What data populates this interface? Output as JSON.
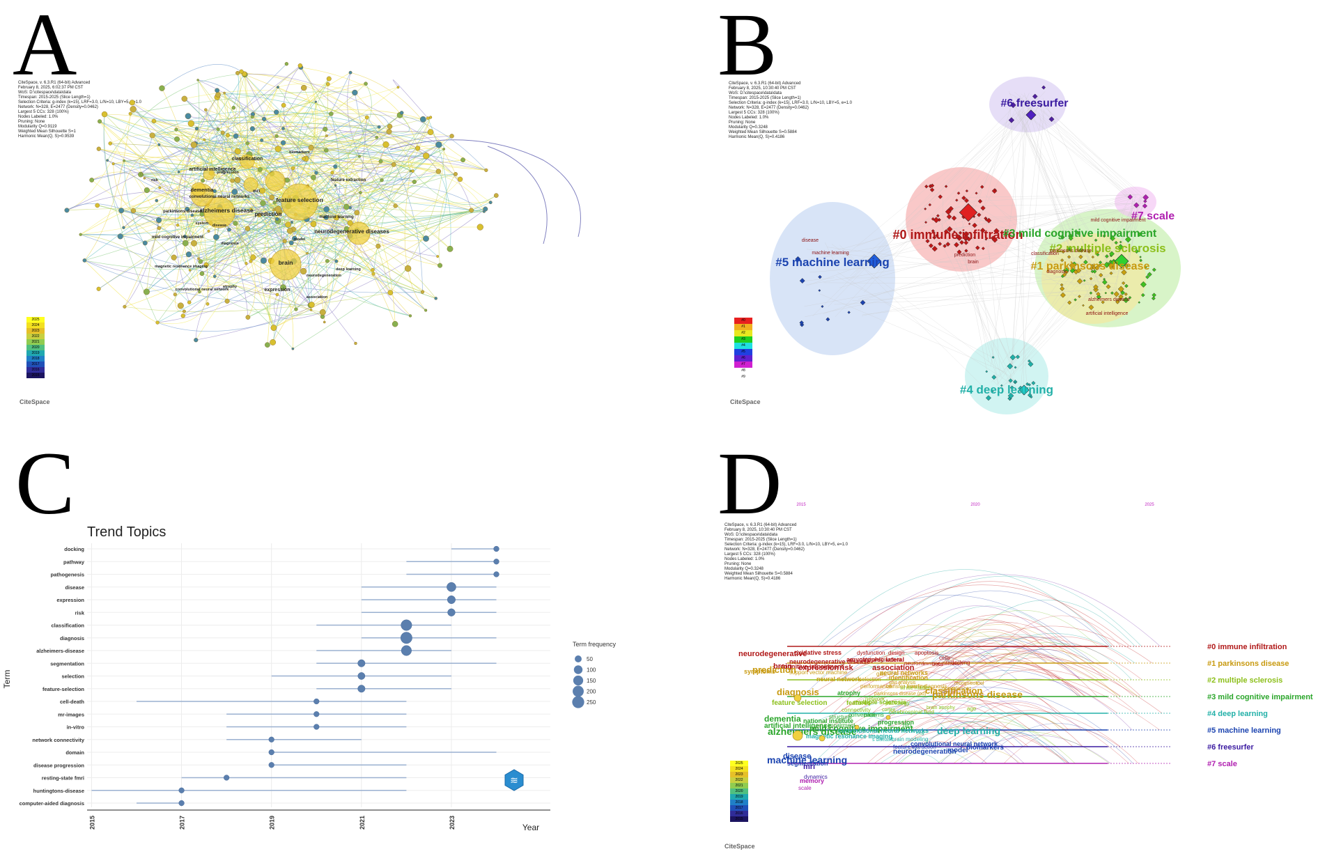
{
  "panels": {
    "a": {
      "letter": "A",
      "meta": [
        "CiteSpace, v. 6.3.R1 (64-bit) Advanced",
        "February 8, 2025, 6:02:37 PM CST",
        "WoS: D:\\citespace\\data\\data",
        "Timespan: 2015-2025 (Slice Length=1)",
        "Selection Criteria: g-index (k=15), LRF=3.0, L/N=10, LBY=5, e=1.0",
        "Network: N=328, E=2477 (Density=0.0462)",
        "Largest 5 CCs: 328 (100%)",
        "Nodes Labeled: 1.0%",
        "Pruning: None",
        "Modularity Q=0.9119",
        "Weighted Mean Silhouette S=1",
        "Harmonic Mean(Q, S)=0.9539"
      ],
      "keywords": [
        "classification",
        "biomarkers",
        "artificial intelligence",
        "progression",
        "risk",
        "dementia",
        "mri",
        "feature extraction",
        "convolutional neural networks",
        "feature selection",
        "alzheimers disease",
        "parkinsons disease",
        "prediction",
        "machine learning",
        "system",
        "neurodegenerative diseases",
        "mild cognitive impairment",
        "diagnosis",
        "brain",
        "magnetic resonance imaging",
        "deep learning",
        "neurodegeneration",
        "convolutional neural network",
        "atrophy",
        "expression",
        "association",
        "disease",
        "model"
      ],
      "legend_years": [
        "2025",
        "2024",
        "2023",
        "2022",
        "2021",
        "2020",
        "2019",
        "2018",
        "2017",
        "2016",
        "2015"
      ],
      "logo": "CiteSpace"
    },
    "b": {
      "letter": "B",
      "meta": [
        "CiteSpace, v. 6.3.R1 (64-bit) Advanced",
        "February 8, 2025, 10:30:40 PM CST",
        "WoS: D:\\citespace\\data\\data",
        "Timespan: 2015-2025 (Slice Length=1)",
        "Selection Criteria: g-index (k=15), LRF=3.0, L/N=10, LBY=5, e=1.0",
        "Network: N=328, E=2477 (Density=0.0462)",
        "Largest 5 CCs: 328 (100%)",
        "Nodes Labeled: 1.0%",
        "Pruning: None",
        "Modularity Q=0.3248",
        "Weighted Mean Silhouette S=0.5884",
        "Harmonic Mean(Q, S)=0.4186"
      ],
      "clusters": [
        {
          "label": "#0 immune infiltration",
          "color": "#b01818"
        },
        {
          "label": "#1 parkinsons disease",
          "color": "#c89a10"
        },
        {
          "label": "#2 multiple sclerosis",
          "color": "#8cbf1a"
        },
        {
          "label": "#3 mild cognitive impairment",
          "color": "#2aa52a"
        },
        {
          "label": "#4 deep learning",
          "color": "#22b0a8"
        },
        {
          "label": "#5 machine learning",
          "color": "#1c44b0"
        },
        {
          "label": "#6 freesurfer",
          "color": "#3a1aa0"
        },
        {
          "label": "#7 scale",
          "color": "#b020b0"
        }
      ],
      "small_labels": [
        "disease",
        "machine learning",
        "prediction",
        "brain",
        "mild cognitive impairment",
        "classification",
        "parkinsons disease",
        "diagnosis",
        "alzheimers disease",
        "artificial intelligence"
      ],
      "legend": [
        "#0",
        "#1",
        "#2",
        "#3",
        "#4",
        "#5",
        "#6",
        "#7",
        "#8",
        "#9"
      ],
      "logo": "CiteSpace"
    },
    "c": {
      "letter": "C",
      "title": "Trend Topics",
      "ylabel": "Term",
      "xlabel": "Year",
      "legend_title": "Term frequency",
      "legend_sizes": [
        50,
        100,
        150,
        200,
        250
      ],
      "logo_text": "≋"
    },
    "d": {
      "letter": "D",
      "meta": [
        "CiteSpace, v. 6.3.R1 (64-bit) Advanced",
        "February 8, 2025, 10:30:40 PM CST",
        "WoS: D:\\citespace\\data\\data",
        "Timespan: 2015-2025 (Slice Length=1)",
        "Selection Criteria: g-index (k=15), LRF=3.0, L/N=10, LBY=5, e=1.0",
        "Network: N=328, E=2477 (Density=0.0462)",
        "Largest 5 CCs: 328 (100%)",
        "Nodes Labeled: 1.0%",
        "Pruning: None",
        "Modularity Q=0.3248",
        "Weighted Mean Silhouette S=0.5884",
        "Harmonic Mean(Q, S)=0.4186"
      ],
      "timeline_years": [
        "2015",
        "2020",
        "2025"
      ],
      "clusters": [
        {
          "label": "#0 immune infiltration",
          "color": "#b01818"
        },
        {
          "label": "#1 parkinsons disease",
          "color": "#c89a10"
        },
        {
          "label": "#2 multiple sclerosis",
          "color": "#8cbf1a"
        },
        {
          "label": "#3 mild cognitive impairment",
          "color": "#2aa52a"
        },
        {
          "label": "#4 deep learning",
          "color": "#22b0a8"
        },
        {
          "label": "#5 machine learning",
          "color": "#1c44b0"
        },
        {
          "label": "#6 freesurfer",
          "color": "#3a1aa0"
        },
        {
          "label": "#7 scale",
          "color": "#b020b0"
        }
      ],
      "words": [
        {
          "t": "neurodegenerative",
          "c": "#b01818",
          "s": 11
        },
        {
          "t": "oxidative stress",
          "c": "#b01818",
          "s": 9
        },
        {
          "t": "dysfunction",
          "c": "#b01818",
          "s": 8
        },
        {
          "t": "design",
          "c": "#b01818",
          "s": 8
        },
        {
          "t": "apoptosis",
          "c": "#b01818",
          "s": 8
        },
        {
          "t": "cells",
          "c": "#b01818",
          "s": 8
        },
        {
          "t": "docking",
          "c": "#b01818",
          "s": 8
        },
        {
          "t": "immune infiltration",
          "c": "#b01818",
          "s": 7
        },
        {
          "t": "neurons",
          "c": "#b01818",
          "s": 8
        },
        {
          "t": "beta",
          "c": "#b01818",
          "s": 8
        },
        {
          "t": "amyotrophic lateral",
          "c": "#b01818",
          "s": 9
        },
        {
          "t": "alpha-synuclein",
          "c": "#b01818",
          "s": 8
        },
        {
          "t": "neurodegenerative disease",
          "c": "#b01818",
          "s": 9
        },
        {
          "t": "cognitive impairment",
          "c": "#b01818",
          "s": 9
        },
        {
          "t": "brain",
          "c": "#b01818",
          "s": 11
        },
        {
          "t": "expression",
          "c": "#b01818",
          "s": 11
        },
        {
          "t": "risk",
          "c": "#b01818",
          "s": 11
        },
        {
          "t": "association",
          "c": "#b01818",
          "s": 11
        },
        {
          "t": "symptoms",
          "c": "#c89a10",
          "s": 9
        },
        {
          "t": "prediction",
          "c": "#c89a10",
          "s": 13
        },
        {
          "t": "support vector machine",
          "c": "#c89a10",
          "s": 8
        },
        {
          "t": "neural network",
          "c": "#c89a10",
          "s": 9
        },
        {
          "t": "selection",
          "c": "#c89a10",
          "s": 8
        },
        {
          "t": "identification",
          "c": "#c89a10",
          "s": 9
        },
        {
          "t": "gait",
          "c": "#c89a10",
          "s": 8
        },
        {
          "t": "gait analysis",
          "c": "#c89a10",
          "s": 7
        },
        {
          "t": "neural networks",
          "c": "#c89a10",
          "s": 9
        },
        {
          "t": "performance",
          "c": "#c89a10",
          "s": 8
        },
        {
          "t": "transfer learning",
          "c": "#c89a10",
          "s": 8
        },
        {
          "t": "early diagnosis",
          "c": "#c89a10",
          "s": 8
        },
        {
          "t": "prevalence",
          "c": "#c89a10",
          "s": 8
        },
        {
          "t": "recognition",
          "c": "#c89a10",
          "s": 7
        },
        {
          "t": "tool",
          "c": "#c89a10",
          "s": 7
        },
        {
          "t": "parkinsons disease (pd)",
          "c": "#c89a10",
          "s": 7
        },
        {
          "t": "classification",
          "c": "#c89a10",
          "s": 13
        },
        {
          "t": "parkinsons disease",
          "c": "#c89a10",
          "s": 14
        },
        {
          "t": "diagnosis",
          "c": "#c89a10",
          "s": 13
        },
        {
          "t": "feature selection",
          "c": "#8cbf1a",
          "s": 10
        },
        {
          "t": "features",
          "c": "#8cbf1a",
          "s": 9
        },
        {
          "t": "pathology",
          "c": "#8cbf1a",
          "s": 8
        },
        {
          "t": "network",
          "c": "#8cbf1a",
          "s": 8
        },
        {
          "t": "white matter",
          "c": "#8cbf1a",
          "s": 8
        },
        {
          "t": "connectivity",
          "c": "#8cbf1a",
          "s": 8
        },
        {
          "t": "cortex",
          "c": "#8cbf1a",
          "s": 7
        },
        {
          "t": "brain atrophy",
          "c": "#8cbf1a",
          "s": 7
        },
        {
          "t": "age",
          "c": "#8cbf1a",
          "s": 8
        },
        {
          "t": "multiple sclerosis",
          "c": "#8cbf1a",
          "s": 9
        },
        {
          "t": "cerebrospinal fluid",
          "c": "#8cbf1a",
          "s": 8
        },
        {
          "t": "atrophy",
          "c": "#2aa52a",
          "s": 9
        },
        {
          "t": "conversion",
          "c": "#2aa52a",
          "s": 8
        },
        {
          "t": "patterns",
          "c": "#2aa52a",
          "s": 8
        },
        {
          "t": "dementia",
          "c": "#2aa52a",
          "s": 12
        },
        {
          "t": "structural",
          "c": "#2aa52a",
          "s": 8
        },
        {
          "t": "national institute",
          "c": "#2aa52a",
          "s": 9
        },
        {
          "t": "impairment",
          "c": "#2aa52a",
          "s": 8
        },
        {
          "t": "progression",
          "c": "#2aa52a",
          "s": 9
        },
        {
          "t": "artificial intelligence",
          "c": "#2aa52a",
          "s": 10
        },
        {
          "t": "mild cognitive impairment",
          "c": "#2aa52a",
          "s": 12
        },
        {
          "t": "mci",
          "c": "#2aa52a",
          "s": 8
        },
        {
          "t": "alzheimers disease",
          "c": "#2aa52a",
          "s": 14
        },
        {
          "t": "convolutional neural networks",
          "c": "#22b0a8",
          "s": 9
        },
        {
          "t": "magnetic resonance imaging",
          "c": "#22b0a8",
          "s": 9
        },
        {
          "t": "s disease",
          "c": "#22b0a8",
          "s": 7
        },
        {
          "t": "brain modeling",
          "c": "#22b0a8",
          "s": 8
        },
        {
          "t": "eeg",
          "c": "#22b0a8",
          "s": 7
        },
        {
          "t": "deep learning",
          "c": "#22b0a8",
          "s": 14
        },
        {
          "t": "convolutional neural network",
          "c": "#1c44b0",
          "s": 9
        },
        {
          "t": "feature extraction",
          "c": "#1c44b0",
          "s": 8
        },
        {
          "t": "neurodegeneration",
          "c": "#1c44b0",
          "s": 10
        },
        {
          "t": "model",
          "c": "#1c44b0",
          "s": 10
        },
        {
          "t": "biomarkers",
          "c": "#1c44b0",
          "s": 10
        },
        {
          "t": "disease",
          "c": "#1c44b0",
          "s": 11
        },
        {
          "t": "machine learning",
          "c": "#1c44b0",
          "s": 14
        },
        {
          "t": "segmentation",
          "c": "#1c44b0",
          "s": 9
        },
        {
          "t": "mri",
          "c": "#3a1aa0",
          "s": 11
        },
        {
          "t": "dynamics",
          "c": "#3a1aa0",
          "s": 8
        },
        {
          "t": "memory",
          "c": "#b020b0",
          "s": 9
        },
        {
          "t": "scale",
          "c": "#b020b0",
          "s": 8
        }
      ],
      "logo": "CiteSpace"
    }
  },
  "chart_data": {
    "type": "scatter",
    "title": "Trend Topics",
    "xlabel": "Year",
    "ylabel": "Term",
    "xlim": [
      2014.9,
      2025.2
    ],
    "xticks": [
      "2015",
      "2017",
      "2019",
      "2021",
      "2023"
    ],
    "size_legend": {
      "title": "Term frequency",
      "values": [
        50,
        100,
        150,
        200,
        250
      ]
    },
    "terms": [
      {
        "term": "docking",
        "q1": 2023,
        "median": 2024,
        "q3": 2024,
        "freq": 20
      },
      {
        "term": "pathway",
        "q1": 2022,
        "median": 2024,
        "q3": 2024,
        "freq": 20
      },
      {
        "term": "pathogenesis",
        "q1": 2022,
        "median": 2024,
        "q3": 2024,
        "freq": 20
      },
      {
        "term": "disease",
        "q1": 2021,
        "median": 2023,
        "q3": 2024,
        "freq": 120
      },
      {
        "term": "expression",
        "q1": 2021,
        "median": 2023,
        "q3": 2024,
        "freq": 80
      },
      {
        "term": "risk",
        "q1": 2021,
        "median": 2023,
        "q3": 2024,
        "freq": 65
      },
      {
        "term": "classification",
        "q1": 2020,
        "median": 2022,
        "q3": 2023,
        "freq": 190
      },
      {
        "term": "diagnosis",
        "q1": 2021,
        "median": 2022,
        "q3": 2024,
        "freq": 220
      },
      {
        "term": "alzheimers-disease",
        "q1": 2020,
        "median": 2022,
        "q3": 2023,
        "freq": 160
      },
      {
        "term": "segmentation",
        "q1": 2020,
        "median": 2021,
        "q3": 2024,
        "freq": 60
      },
      {
        "term": "selection",
        "q1": 2019,
        "median": 2021,
        "q3": 2023,
        "freq": 55
      },
      {
        "term": "feature-selection",
        "q1": 2020,
        "median": 2021,
        "q3": 2023,
        "freq": 60
      },
      {
        "term": "cell-death",
        "q1": 2016,
        "median": 2020,
        "q3": 2022,
        "freq": 20
      },
      {
        "term": "mr-images",
        "q1": 2018,
        "median": 2020,
        "q3": 2022,
        "freq": 20
      },
      {
        "term": "in-vitro",
        "q1": 2018,
        "median": 2020,
        "q3": 2022,
        "freq": 20
      },
      {
        "term": "network connectivity",
        "q1": 2018,
        "median": 2019,
        "q3": 2021,
        "freq": 20
      },
      {
        "term": "domain",
        "q1": 2019,
        "median": 2019,
        "q3": 2024,
        "freq": 20
      },
      {
        "term": "disease progression",
        "q1": 2019,
        "median": 2019,
        "q3": 2022,
        "freq": 20
      },
      {
        "term": "resting-state fmri",
        "q1": 2017,
        "median": 2018,
        "q3": 2022,
        "freq": 20
      },
      {
        "term": "huntingtons-disease",
        "q1": 2015,
        "median": 2017,
        "q3": 2022,
        "freq": 20
      },
      {
        "term": "computer-aided diagnosis",
        "q1": 2016,
        "median": 2017,
        "q3": 2017,
        "freq": 20
      }
    ]
  }
}
